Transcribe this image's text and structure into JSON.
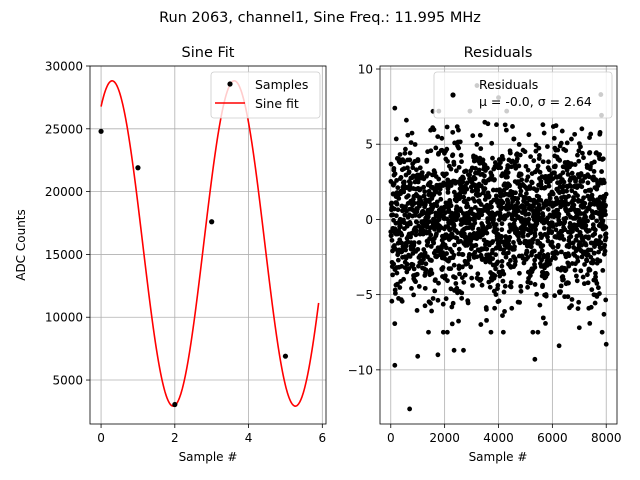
{
  "suptitle": "Run 2063, channel1, Sine Freq.: 11.995 MHz",
  "chart_data": [
    {
      "type": "scatter",
      "title": "Sine Fit",
      "xlabel": "Sample #",
      "ylabel": "ADC Counts",
      "xlim": [
        -0.3,
        6.1
      ],
      "ylim": [
        1500,
        30000
      ],
      "xticks": [
        0,
        2,
        4,
        6
      ],
      "xtick_labels": [
        "0",
        "2",
        "4",
        "6"
      ],
      "yticks": [
        5000,
        10000,
        15000,
        20000,
        25000,
        30000
      ],
      "ytick_labels": [
        "5000",
        "10000",
        "15000",
        "20000",
        "25000",
        "30000"
      ],
      "grid": true,
      "legend": {
        "position": "top-right",
        "entries": [
          "Samples",
          "Sine fit"
        ]
      },
      "series": [
        {
          "name": "Samples",
          "kind": "points",
          "color": "#000000",
          "x": [
            0,
            1,
            2,
            3,
            5
          ],
          "y": [
            24800,
            21900,
            3050,
            17600,
            6900
          ]
        },
        {
          "name": "Sine fit",
          "kind": "line",
          "color": "#ff0000",
          "function": {
            "offset": 15870,
            "amplitude": 12950,
            "cycles_per_sample": 0.3019,
            "phase_rad": 1.0006,
            "x_start": 0,
            "x_end": 5.9
          }
        }
      ]
    },
    {
      "type": "scatter",
      "title": "Residuals",
      "xlabel": "Sample #",
      "ylabel": "",
      "xlim": [
        -400,
        8400
      ],
      "ylim": [
        -13.6,
        10.2
      ],
      "xticks": [
        0,
        2000,
        4000,
        6000,
        8000
      ],
      "xtick_labels": [
        "0",
        "2000",
        "4000",
        "6000",
        "8000"
      ],
      "yticks": [
        -10,
        -5,
        0,
        5,
        10
      ],
      "ytick_labels": [
        "−10",
        "−5",
        "0",
        "5",
        "10"
      ],
      "grid": true,
      "legend": {
        "position": "top-right",
        "entries": [
          "Residuals"
        ],
        "stats": [
          "μ = -0.0, σ = 2.64"
        ]
      },
      "residuals": {
        "name": "Residuals",
        "color": "#000000",
        "n_samples": 8000,
        "mean": -0.0,
        "sigma": 2.64,
        "x_start": 0,
        "x_end": 8000,
        "outliers": [
          {
            "x": 700,
            "y": -12.6
          },
          {
            "x": 150,
            "y": -9.7
          },
          {
            "x": 5350,
            "y": -9.3
          },
          {
            "x": 1000,
            "y": -9.1
          },
          {
            "x": 1750,
            "y": -9.0
          },
          {
            "x": 2350,
            "y": -8.7
          },
          {
            "x": 2700,
            "y": -8.7
          },
          {
            "x": 6250,
            "y": -8.4
          },
          {
            "x": 8000,
            "y": -8.3
          },
          {
            "x": 7000,
            "y": -7.2
          },
          {
            "x": 150,
            "y": 7.4
          },
          {
            "x": 3200,
            "y": 8.9
          },
          {
            "x": 4000,
            "y": 8.1
          },
          {
            "x": 7800,
            "y": 8.3
          }
        ]
      }
    }
  ]
}
